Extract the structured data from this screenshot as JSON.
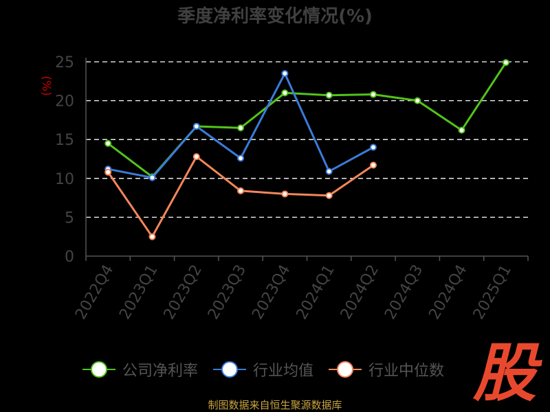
{
  "chart_data": {
    "type": "line",
    "title": "季度净利率变化情况(%)",
    "ylabel": "(%)",
    "xlabel": "",
    "categories": [
      "2022Q4",
      "2023Q1",
      "2023Q2",
      "2023Q3",
      "2023Q4",
      "2024Q1",
      "2024Q2",
      "2024Q3",
      "2024Q4",
      "2025Q1"
    ],
    "ylim": [
      0,
      25
    ],
    "yticks": [
      0,
      5,
      10,
      15,
      20,
      25
    ],
    "grid": true,
    "legend_position": "bottom",
    "series": [
      {
        "name": "公司净利率",
        "color": "#52c41a",
        "values": [
          14.5,
          10.2,
          16.7,
          16.5,
          21.0,
          20.7,
          20.8,
          20.0,
          16.2,
          24.9
        ]
      },
      {
        "name": "行业均值",
        "color": "#3b7bd9",
        "values": [
          11.2,
          10.1,
          16.7,
          12.6,
          23.5,
          10.9,
          14.0,
          null,
          null,
          null
        ]
      },
      {
        "name": "行业中位数",
        "color": "#f5875a",
        "values": [
          10.8,
          2.5,
          12.8,
          8.4,
          8.0,
          7.8,
          11.7,
          null,
          null,
          null
        ]
      }
    ]
  },
  "source": "制图数据来自恒生聚源数据库",
  "watermark": "股"
}
